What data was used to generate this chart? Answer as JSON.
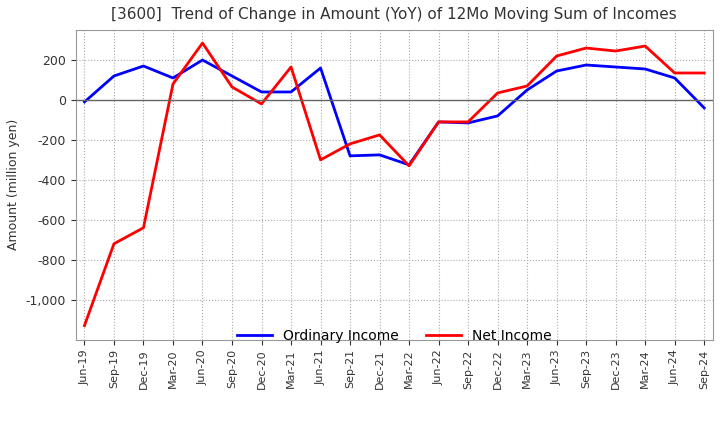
{
  "title": "[3600]  Trend of Change in Amount (YoY) of 12Mo Moving Sum of Incomes",
  "ylabel": "Amount (million yen)",
  "xlabels": [
    "Jun-19",
    "Sep-19",
    "Dec-19",
    "Mar-20",
    "Jun-20",
    "Sep-20",
    "Dec-20",
    "Mar-21",
    "Jun-21",
    "Sep-21",
    "Dec-21",
    "Mar-22",
    "Jun-22",
    "Sep-22",
    "Dec-22",
    "Mar-23",
    "Jun-23",
    "Sep-23",
    "Dec-23",
    "Mar-24",
    "Jun-24",
    "Sep-24"
  ],
  "ordinary_income": [
    -10,
    120,
    170,
    110,
    200,
    120,
    40,
    40,
    160,
    -280,
    -275,
    -325,
    -110,
    -115,
    -80,
    50,
    145,
    175,
    165,
    155,
    110,
    -40
  ],
  "net_income": [
    -1130,
    -720,
    -640,
    80,
    285,
    65,
    -20,
    165,
    -300,
    -220,
    -175,
    -330,
    -110,
    -110,
    35,
    70,
    220,
    260,
    245,
    270,
    135,
    135
  ],
  "ordinary_color": "#0000ff",
  "net_color": "#ff0000",
  "ylim": [
    -1200,
    350
  ],
  "yticks": [
    200,
    0,
    -200,
    -400,
    -600,
    -800,
    -1000
  ],
  "title_color": "#333333",
  "background_color": "#ffffff",
  "grid_color": "#aaaaaa"
}
